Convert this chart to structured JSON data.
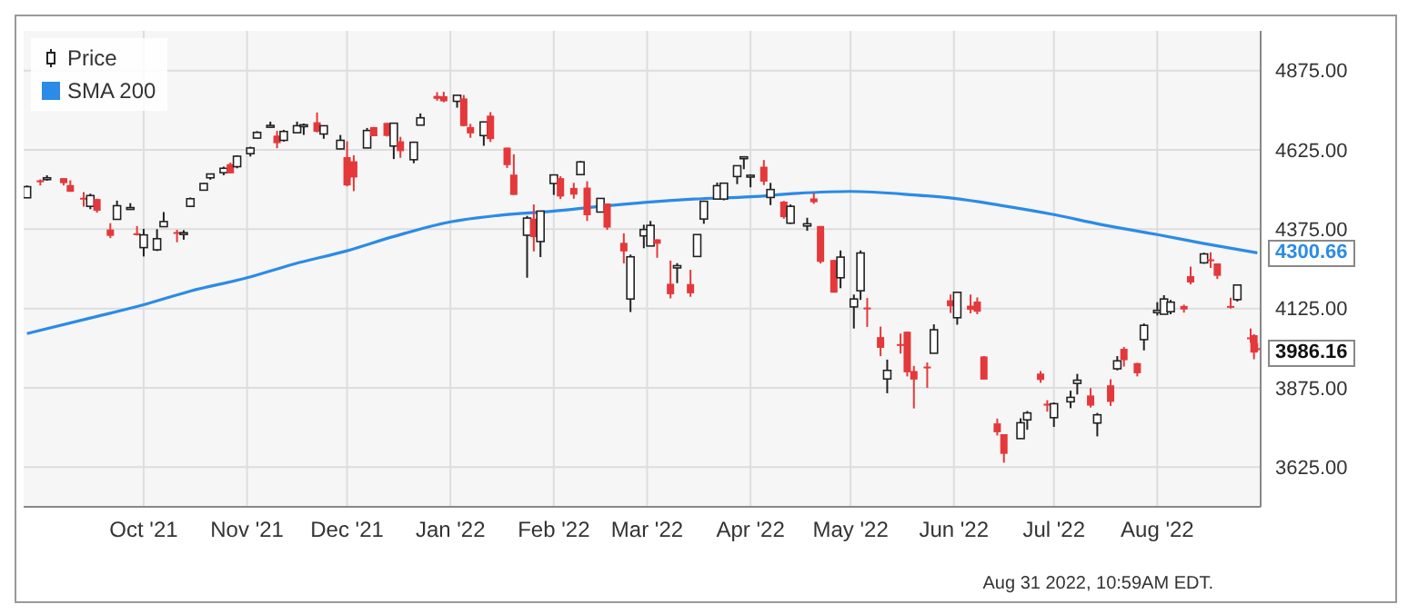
{
  "chart_data": {
    "type": "candlestick",
    "ylim": [
      3500,
      5000
    ],
    "yticks": [
      {
        "value": 3625,
        "label": "3625.00"
      },
      {
        "value": 3875,
        "label": "3875.00"
      },
      {
        "value": 4125,
        "label": "4125.00"
      },
      {
        "value": 4375,
        "label": "4375.00"
      },
      {
        "value": 4625,
        "label": "4625.00"
      },
      {
        "value": 4875,
        "label": "4875.00"
      }
    ],
    "xlim": [
      "2021-08-26",
      "2022-09-01"
    ],
    "xticks": [
      {
        "value": "2021-10-01",
        "label": "Oct '21"
      },
      {
        "value": "2021-11-01",
        "label": "Nov '21"
      },
      {
        "value": "2021-12-01",
        "label": "Dec '21"
      },
      {
        "value": "2022-01-01",
        "label": "Jan '22"
      },
      {
        "value": "2022-02-01",
        "label": "Feb '22"
      },
      {
        "value": "2022-03-01",
        "label": "Mar '22"
      },
      {
        "value": "2022-04-01",
        "label": "Apr '22"
      },
      {
        "value": "2022-05-01",
        "label": "May '22"
      },
      {
        "value": "2022-06-01",
        "label": "Jun '22"
      },
      {
        "value": "2022-07-01",
        "label": "Jul '22"
      },
      {
        "value": "2022-08-01",
        "label": "Aug '22"
      }
    ],
    "grid": true,
    "legend": "top left",
    "annotations": [
      {
        "text": "4300.66",
        "x": "2022-08-31",
        "y": 4300.66
      },
      {
        "text": "3986.16",
        "x": "2022-08-30",
        "y": 3986.16
      },
      "Aug 31 2022, 10:59AM EDT."
    ],
    "series": [
      {
        "name": "Price",
        "x": [
          "2021-08-27",
          "2021-08-31",
          "2021-09-02",
          "2021-09-07",
          "2021-09-09",
          "2021-09-13",
          "2021-09-15",
          "2021-09-17",
          "2021-09-21",
          "2021-09-23",
          "2021-09-27",
          "2021-09-29",
          "2021-10-01",
          "2021-10-05",
          "2021-10-07",
          "2021-10-11",
          "2021-10-13",
          "2021-10-15",
          "2021-10-19",
          "2021-10-21",
          "2021-10-25",
          "2021-10-27",
          "2021-10-29",
          "2021-11-02",
          "2021-11-04",
          "2021-11-08",
          "2021-11-10",
          "2021-11-12",
          "2021-11-16",
          "2021-11-18",
          "2021-11-22",
          "2021-11-24",
          "2021-11-29",
          "2021-12-01",
          "2021-12-03",
          "2021-12-07",
          "2021-12-09",
          "2021-12-13",
          "2021-12-15",
          "2021-12-17",
          "2021-12-21",
          "2021-12-23",
          "2021-12-28",
          "2021-12-30",
          "2022-01-03",
          "2022-01-05",
          "2022-01-07",
          "2022-01-11",
          "2022-01-13",
          "2022-01-18",
          "2022-01-20",
          "2022-01-24",
          "2022-01-26",
          "2022-01-28",
          "2022-02-01",
          "2022-02-03",
          "2022-02-07",
          "2022-02-09",
          "2022-02-11",
          "2022-02-15",
          "2022-02-17",
          "2022-02-22",
          "2022-02-24",
          "2022-02-28",
          "2022-03-02",
          "2022-03-04",
          "2022-03-08",
          "2022-03-10",
          "2022-03-14",
          "2022-03-16",
          "2022-03-18",
          "2022-03-22",
          "2022-03-24",
          "2022-03-28",
          "2022-03-30",
          "2022-04-01",
          "2022-04-05",
          "2022-04-07",
          "2022-04-11",
          "2022-04-13",
          "2022-04-18",
          "2022-04-20",
          "2022-04-22",
          "2022-04-26",
          "2022-04-28",
          "2022-05-02",
          "2022-05-04",
          "2022-05-06",
          "2022-05-10",
          "2022-05-12",
          "2022-05-16",
          "2022-05-18",
          "2022-05-20",
          "2022-05-24",
          "2022-05-26",
          "2022-05-31",
          "2022-06-02",
          "2022-06-06",
          "2022-06-08",
          "2022-06-10",
          "2022-06-14",
          "2022-06-16",
          "2022-06-21",
          "2022-06-23",
          "2022-06-27",
          "2022-06-29",
          "2022-07-01",
          "2022-07-06",
          "2022-07-08",
          "2022-07-12",
          "2022-07-14",
          "2022-07-18",
          "2022-07-20",
          "2022-07-22",
          "2022-07-26",
          "2022-07-28",
          "2022-08-01",
          "2022-08-03",
          "2022-08-05",
          "2022-08-09",
          "2022-08-11",
          "2022-08-15",
          "2022-08-17",
          "2022-08-19",
          "2022-08-23",
          "2022-08-25",
          "2022-08-29",
          "2022-08-30",
          "2022-08-31"
        ],
        "ohlc": [
          [
            4474,
            4513,
            4473,
            4509
          ],
          [
            4529,
            4532,
            4513,
            4523
          ],
          [
            4534,
            4545,
            4528,
            4537
          ],
          [
            4536,
            4536,
            4513,
            4520
          ],
          [
            4514,
            4529,
            4493,
            4493
          ],
          [
            4474,
            4492,
            4446,
            4469
          ],
          [
            4447,
            4487,
            4438,
            4481
          ],
          [
            4470,
            4471,
            4427,
            4433
          ],
          [
            4374,
            4394,
            4347,
            4354
          ],
          [
            4406,
            4465,
            4406,
            4449
          ],
          [
            4442,
            4457,
            4437,
            4443
          ],
          [
            4362,
            4385,
            4355,
            4360
          ],
          [
            4317,
            4376,
            4289,
            4357
          ],
          [
            4310,
            4375,
            4306,
            4345
          ],
          [
            4383,
            4429,
            4383,
            4399
          ],
          [
            4366,
            4373,
            4334,
            4361
          ],
          [
            4359,
            4372,
            4342,
            4364
          ],
          [
            4447,
            4475,
            4447,
            4471
          ],
          [
            4498,
            4520,
            4498,
            4519
          ],
          [
            4537,
            4549,
            4531,
            4549
          ],
          [
            4553,
            4572,
            4545,
            4567
          ],
          [
            4580,
            4585,
            4551,
            4551
          ],
          [
            4572,
            4608,
            4567,
            4605
          ],
          [
            4613,
            4635,
            4604,
            4631
          ],
          [
            4662,
            4684,
            4662,
            4680
          ],
          [
            4701,
            4714,
            4694,
            4702
          ],
          [
            4670,
            4685,
            4630,
            4646
          ],
          [
            4655,
            4688,
            4651,
            4683
          ],
          [
            4679,
            4714,
            4679,
            4701
          ],
          [
            4700,
            4708,
            4672,
            4704
          ],
          [
            4712,
            4743,
            4680,
            4682
          ],
          [
            4675,
            4702,
            4660,
            4701
          ],
          [
            4628,
            4672,
            4626,
            4655
          ],
          [
            4602,
            4652,
            4510,
            4513
          ],
          [
            4589,
            4608,
            4495,
            4538
          ],
          [
            4631,
            4694,
            4631,
            4686
          ],
          [
            4697,
            4697,
            4668,
            4668
          ],
          [
            4710,
            4710,
            4667,
            4669
          ],
          [
            4637,
            4710,
            4596,
            4709
          ],
          [
            4652,
            4666,
            4600,
            4621
          ],
          [
            4594,
            4651,
            4583,
            4649
          ],
          [
            4703,
            4740,
            4703,
            4726
          ],
          [
            4795,
            4807,
            4780,
            4786
          ],
          [
            4794,
            4808,
            4775,
            4778
          ],
          [
            4778,
            4797,
            4758,
            4797
          ],
          [
            4787,
            4798,
            4699,
            4700
          ],
          [
            4697,
            4707,
            4663,
            4677
          ],
          [
            4670,
            4714,
            4638,
            4713
          ],
          [
            4733,
            4744,
            4650,
            4659
          ],
          [
            4632,
            4632,
            4568,
            4577
          ],
          [
            4547,
            4611,
            4483,
            4483
          ],
          [
            4356,
            4417,
            4222,
            4410
          ],
          [
            4408,
            4453,
            4305,
            4350
          ],
          [
            4336,
            4432,
            4287,
            4432
          ],
          [
            4519,
            4546,
            4483,
            4546
          ],
          [
            4536,
            4542,
            4470,
            4478
          ],
          [
            4505,
            4521,
            4471,
            4484
          ],
          [
            4547,
            4590,
            4547,
            4587
          ],
          [
            4506,
            4526,
            4401,
            4419
          ],
          [
            4429,
            4473,
            4429,
            4472
          ],
          [
            4456,
            4456,
            4373,
            4380
          ],
          [
            4332,
            4362,
            4267,
            4305
          ],
          [
            4155,
            4295,
            4114,
            4288
          ],
          [
            4354,
            4389,
            4315,
            4374
          ],
          [
            4322,
            4401,
            4322,
            4387
          ],
          [
            4343,
            4343,
            4285,
            4329
          ],
          [
            4203,
            4276,
            4157,
            4170
          ],
          [
            4253,
            4268,
            4205,
            4260
          ],
          [
            4202,
            4247,
            4162,
            4173
          ],
          [
            4289,
            4358,
            4288,
            4358
          ],
          [
            4407,
            4465,
            4392,
            4463
          ],
          [
            4470,
            4522,
            4470,
            4512
          ],
          [
            4470,
            4520,
            4466,
            4520
          ],
          [
            4541,
            4575,
            4517,
            4575
          ],
          [
            4599,
            4603,
            4564,
            4603
          ],
          [
            4540,
            4548,
            4507,
            4545
          ],
          [
            4572,
            4593,
            4514,
            4525
          ],
          [
            4475,
            4521,
            4451,
            4500
          ],
          [
            4462,
            4464,
            4408,
            4413
          ],
          [
            4394,
            4453,
            4392,
            4447
          ],
          [
            4385,
            4411,
            4370,
            4392
          ],
          [
            4472,
            4489,
            4455,
            4460
          ],
          [
            4385,
            4385,
            4267,
            4272
          ],
          [
            4278,
            4278,
            4175,
            4175
          ],
          [
            4222,
            4308,
            4189,
            4287
          ],
          [
            4130,
            4169,
            4062,
            4155
          ],
          [
            4181,
            4308,
            4152,
            4300
          ],
          [
            4128,
            4158,
            4067,
            4123
          ],
          [
            4035,
            4068,
            3975,
            4001
          ],
          [
            3903,
            3964,
            3858,
            3930
          ],
          [
            4013,
            4046,
            3983,
            4008
          ],
          [
            4052,
            4052,
            3911,
            3924
          ],
          [
            3928,
            3944,
            3810,
            3901
          ],
          [
            3942,
            3955,
            3875,
            3941
          ],
          [
            3984,
            4075,
            3984,
            4058
          ],
          [
            4151,
            4169,
            4111,
            4132
          ],
          [
            4096,
            4177,
            4074,
            4176
          ],
          [
            4134,
            4169,
            4110,
            4121
          ],
          [
            4147,
            4160,
            4107,
            4115
          ],
          [
            3974,
            3975,
            3901,
            3901
          ],
          [
            3763,
            3778,
            3725,
            3735
          ],
          [
            3729,
            3729,
            3639,
            3667
          ],
          [
            3715,
            3779,
            3715,
            3765
          ],
          [
            3774,
            3802,
            3743,
            3796
          ],
          [
            3920,
            3928,
            3891,
            3900
          ],
          [
            3825,
            3836,
            3800,
            3819
          ],
          [
            3781,
            3829,
            3752,
            3825
          ],
          [
            3831,
            3866,
            3811,
            3845
          ],
          [
            3889,
            3919,
            3854,
            3899
          ],
          [
            3851,
            3874,
            3813,
            3819
          ],
          [
            3764,
            3796,
            3722,
            3790
          ],
          [
            3883,
            3902,
            3818,
            3831
          ],
          [
            3935,
            3975,
            3930,
            3960
          ],
          [
            3998,
            4004,
            3942,
            3962
          ],
          [
            3953,
            3954,
            3911,
            3921
          ],
          [
            4027,
            4078,
            3993,
            4072
          ],
          [
            4112,
            4145,
            4103,
            4119
          ],
          [
            4107,
            4167,
            4107,
            4155
          ],
          [
            4115,
            4152,
            4107,
            4145
          ],
          [
            4133,
            4137,
            4112,
            4122
          ],
          [
            4227,
            4257,
            4201,
            4207
          ],
          [
            4269,
            4301,
            4266,
            4297
          ],
          [
            4280,
            4302,
            4253,
            4274
          ],
          [
            4267,
            4267,
            4218,
            4228
          ],
          [
            4133,
            4159,
            4125,
            4128
          ],
          [
            4153,
            4200,
            4147,
            4199
          ],
          [
            4034,
            4062,
            4017,
            4031
          ],
          [
            4041,
            4044,
            3965,
            3986
          ],
          [
            4000,
            4015,
            3990,
            3995
          ]
        ],
        "colors": [
          "#222222",
          "#e5383b",
          "#222222",
          "#e5383b",
          "#e5383b",
          "#e5383b",
          "#222222",
          "#e5383b",
          "#e5383b",
          "#222222",
          "#222222",
          "#e5383b",
          "#222222",
          "#222222",
          "#222222",
          "#e5383b",
          "#222222",
          "#222222",
          "#222222",
          "#222222",
          "#222222",
          "#e5383b",
          "#222222",
          "#222222",
          "#222222",
          "#222222",
          "#e5383b",
          "#222222",
          "#222222",
          "#222222",
          "#e5383b",
          "#222222",
          "#222222",
          "#e5383b",
          "#e5383b",
          "#222222",
          "#e5383b",
          "#e5383b",
          "#222222",
          "#e5383b",
          "#222222",
          "#222222",
          "#e5383b",
          "#e5383b",
          "#222222",
          "#e5383b",
          "#e5383b",
          "#222222",
          "#e5383b",
          "#e5383b",
          "#e5383b",
          "#222222",
          "#e5383b",
          "#222222",
          "#222222",
          "#e5383b",
          "#e5383b",
          "#222222",
          "#e5383b",
          "#222222",
          "#e5383b",
          "#e5383b",
          "#222222",
          "#222222",
          "#222222",
          "#e5383b",
          "#e5383b",
          "#222222",
          "#e5383b",
          "#222222",
          "#222222",
          "#222222",
          "#222222",
          "#222222",
          "#222222",
          "#222222",
          "#e5383b",
          "#222222",
          "#e5383b",
          "#222222",
          "#222222",
          "#e5383b",
          "#e5383b",
          "#e5383b",
          "#222222",
          "#222222",
          "#222222",
          "#e5383b",
          "#e5383b",
          "#222222",
          "#e5383b",
          "#e5383b",
          "#e5383b",
          "#e5383b",
          "#222222",
          "#e5383b",
          "#222222",
          "#e5383b",
          "#e5383b",
          "#e5383b",
          "#e5383b",
          "#e5383b",
          "#222222",
          "#222222",
          "#e5383b",
          "#e5383b",
          "#222222",
          "#222222",
          "#222222",
          "#e5383b",
          "#222222",
          "#e5383b",
          "#222222",
          "#e5383b",
          "#e5383b",
          "#222222",
          "#222222",
          "#222222",
          "#222222",
          "#e5383b",
          "#e5383b",
          "#222222",
          "#e5383b",
          "#e5383b",
          "#e5383b",
          "#222222",
          "#e5383b",
          "#e5383b",
          "#e5383b"
        ]
      },
      {
        "name": "SMA 200",
        "type": "line",
        "color": "#2b8be6",
        "x": [
          "2021-08-27",
          "2021-09-15",
          "2021-10-01",
          "2021-10-15",
          "2021-11-01",
          "2021-11-15",
          "2021-12-01",
          "2021-12-15",
          "2022-01-01",
          "2022-01-15",
          "2022-02-01",
          "2022-02-15",
          "2022-03-01",
          "2022-03-15",
          "2022-04-01",
          "2022-04-15",
          "2022-05-01",
          "2022-05-20",
          "2022-06-01",
          "2022-06-15",
          "2022-07-01",
          "2022-07-15",
          "2022-08-01",
          "2022-08-15",
          "2022-08-31"
        ],
        "values": [
          4046,
          4095,
          4137,
          4180,
          4222,
          4265,
          4307,
          4352,
          4398,
          4418,
          4432,
          4447,
          4460,
          4470,
          4477,
          4488,
          4494,
          4483,
          4472,
          4450,
          4421,
          4390,
          4358,
          4330,
          4300.66
        ]
      }
    ]
  }
}
